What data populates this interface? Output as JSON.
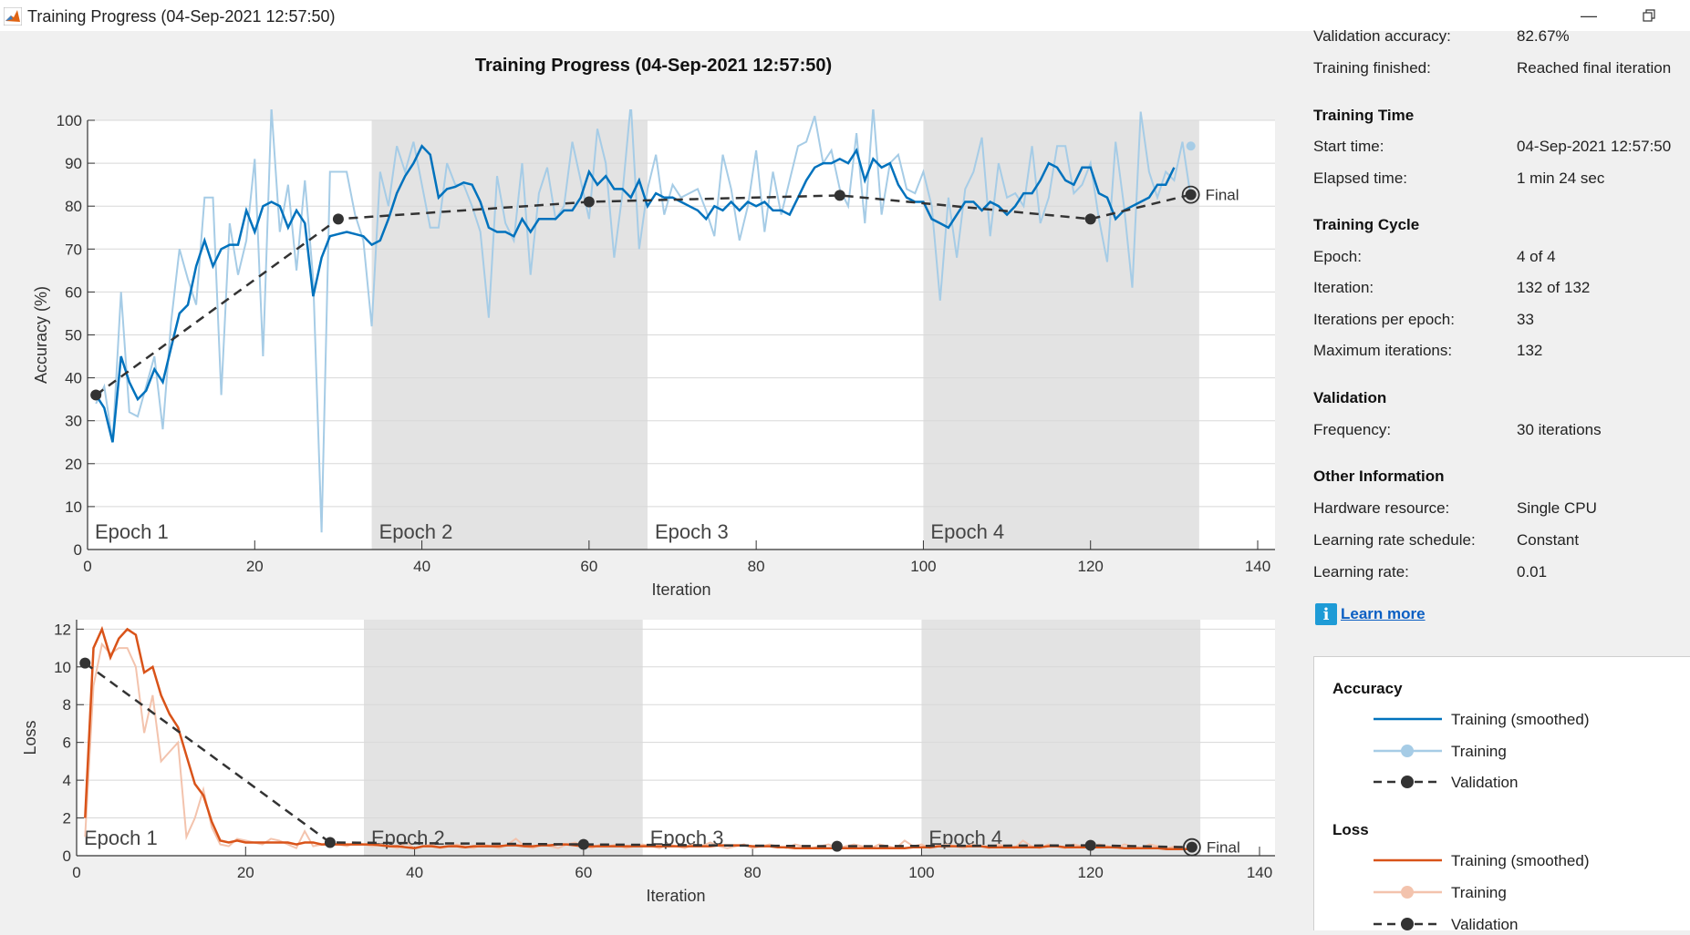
{
  "window": {
    "title": "Training Progress (04-Sep-2021 12:57:50)"
  },
  "figure": {
    "title": "Training Progress (04-Sep-2021 12:57:50)"
  },
  "colors": {
    "accuracy_smoothed": "#0072bd",
    "accuracy_raw": "#a6cce6",
    "loss_smoothed": "#d95319",
    "loss_raw": "#f3c3ad",
    "validation": "#333333",
    "epoch_shade": "#e3e3e3"
  },
  "summary": {
    "validation_accuracy": {
      "label": "Validation accuracy:",
      "value": "82.67%"
    },
    "training_finished": {
      "label": "Training finished:",
      "value": "Reached final iteration"
    }
  },
  "training_time": {
    "heading": "Training Time",
    "start_time": {
      "label": "Start time:",
      "value": "04-Sep-2021 12:57:50"
    },
    "elapsed_time": {
      "label": "Elapsed time:",
      "value": "1 min 24 sec"
    }
  },
  "training_cycle": {
    "heading": "Training Cycle",
    "epoch": {
      "label": "Epoch:",
      "value": "4 of 4"
    },
    "iteration": {
      "label": "Iteration:",
      "value": "132 of 132"
    },
    "iterations_per_epoch": {
      "label": "Iterations per epoch:",
      "value": "33"
    },
    "max_iterations": {
      "label": "Maximum iterations:",
      "value": "132"
    }
  },
  "validation": {
    "heading": "Validation",
    "frequency": {
      "label": "Frequency:",
      "value": "30 iterations"
    }
  },
  "other_info": {
    "heading": "Other Information",
    "hardware": {
      "label": "Hardware resource:",
      "value": "Single CPU"
    },
    "lr_schedule": {
      "label": "Learning rate schedule:",
      "value": "Constant"
    },
    "learning_rate": {
      "label": "Learning rate:",
      "value": "0.01"
    }
  },
  "learn_more": {
    "label": "Learn more",
    "icon": "info-icon"
  },
  "legend": {
    "accuracy_heading": "Accuracy",
    "loss_heading": "Loss",
    "items": {
      "smoothed": "Training (smoothed)",
      "training": "Training",
      "validation": "Validation"
    }
  },
  "chart_data": [
    {
      "type": "line",
      "xlabel": "Iteration",
      "ylabel": "Accuracy (%)",
      "xlim": [
        0,
        140
      ],
      "ylim": [
        0,
        100
      ],
      "xticks": [
        0,
        20,
        40,
        60,
        80,
        100,
        120,
        140
      ],
      "yticks": [
        0,
        10,
        20,
        30,
        40,
        50,
        60,
        70,
        80,
        90,
        100
      ],
      "grid": true,
      "epochs": [
        {
          "label": "Epoch 1",
          "start": 0,
          "end": 33,
          "shaded": false
        },
        {
          "label": "Epoch 2",
          "start": 34,
          "end": 67,
          "shaded": true
        },
        {
          "label": "Epoch 3",
          "start": 67,
          "end": 100,
          "shaded": false
        },
        {
          "label": "Epoch 4",
          "start": 100,
          "end": 133,
          "shaded": true
        }
      ],
      "final_label": "Final",
      "series": [
        {
          "name": "Training",
          "x_start": 1,
          "values": [
            34,
            38,
            25,
            60,
            32,
            31,
            38,
            45,
            28,
            53,
            70,
            63,
            57,
            82,
            82,
            36,
            76,
            64,
            72,
            91,
            45,
            103,
            74,
            85,
            65,
            86,
            63,
            4,
            88,
            88,
            88,
            78,
            72,
            52,
            88,
            80,
            94,
            88,
            95,
            85,
            75,
            75,
            90,
            85,
            85,
            80,
            74,
            54,
            87,
            76,
            72,
            90,
            64,
            83,
            89,
            77,
            80,
            95,
            86,
            77,
            98,
            90,
            68,
            83,
            104,
            70,
            84,
            92,
            78,
            85,
            82,
            83,
            84,
            79,
            73,
            92,
            84,
            72,
            80,
            93,
            74,
            88,
            78,
            86,
            94,
            95,
            101,
            90,
            93,
            84,
            80,
            97,
            76,
            103,
            78,
            90,
            92,
            84,
            83,
            88,
            80,
            58,
            82,
            68,
            84,
            88,
            96,
            73,
            90,
            82,
            83,
            80,
            94,
            76,
            82,
            94,
            94,
            83,
            85,
            90,
            77,
            67,
            95,
            80,
            61,
            102,
            88,
            82,
            88,
            86,
            95,
            82
          ],
          "extra_points": [
            {
              "x": 132,
              "y": 94
            }
          ]
        },
        {
          "name": "Training (smoothed)",
          "x_start": 1,
          "values": [
            36,
            33,
            25,
            45,
            39,
            35,
            37,
            42,
            39,
            47,
            55,
            57,
            66,
            72,
            66,
            70,
            71,
            71,
            79,
            74,
            80,
            81,
            80,
            75,
            79,
            76,
            59,
            68,
            73,
            73.5,
            74,
            73.5,
            73,
            71,
            72,
            77,
            83,
            87,
            90,
            94,
            92,
            82,
            84,
            84.5,
            85.5,
            85,
            81,
            75,
            74,
            74,
            73,
            77,
            74,
            77,
            77,
            77,
            79,
            79,
            82,
            88,
            85,
            87,
            84,
            84,
            82,
            86,
            80,
            83,
            82,
            82,
            81,
            80,
            79,
            77,
            80,
            79,
            81,
            79,
            81,
            80,
            81,
            79,
            79,
            78,
            82,
            86,
            89,
            90,
            90,
            91,
            90,
            93,
            86,
            91,
            89,
            90,
            85,
            82,
            81,
            81,
            77,
            76,
            75,
            78,
            81,
            81,
            79,
            81,
            80,
            78,
            80,
            83,
            83,
            86,
            90,
            89,
            86,
            85,
            89,
            89,
            83,
            82,
            77,
            79,
            80,
            81,
            82,
            85,
            85,
            89
          ]
        },
        {
          "name": "Validation",
          "x": [
            1,
            30,
            60,
            90,
            120,
            132
          ],
          "values": [
            36,
            77,
            81,
            82.5,
            77,
            82.67
          ]
        }
      ]
    },
    {
      "type": "line",
      "xlabel": "Iteration",
      "ylabel": "Loss",
      "xlim": [
        0,
        140
      ],
      "ylim": [
        0,
        12.5
      ],
      "xticks": [
        0,
        20,
        40,
        60,
        80,
        100,
        120,
        140
      ],
      "yticks": [
        0,
        2,
        4,
        6,
        8,
        10,
        12
      ],
      "grid": true,
      "epochs": [
        {
          "label": "Epoch 1",
          "start": 0,
          "end": 34,
          "shaded": false
        },
        {
          "label": "Epoch 2",
          "start": 34,
          "end": 67,
          "shaded": true
        },
        {
          "label": "Epoch 3",
          "start": 67,
          "end": 100,
          "shaded": false
        },
        {
          "label": "Epoch 4",
          "start": 100,
          "end": 133,
          "shaded": true
        }
      ],
      "final_label": "Final",
      "series": [
        {
          "name": "Training",
          "x_start": 1,
          "values": [
            1,
            9,
            11.2,
            10.7,
            11,
            11,
            10,
            6.5,
            8.5,
            5,
            5.5,
            6,
            1,
            2,
            3.5,
            1.5,
            0.6,
            0.5,
            0.9,
            0.8,
            0.7,
            0.6,
            0.9,
            0.8,
            0.6,
            0.4,
            1.3,
            0.5,
            0.6,
            0.7,
            0.6,
            0.5,
            0.7,
            0.6,
            0.5,
            0.6,
            0.5,
            0.4,
            0.7,
            0.4,
            0.5,
            0.6,
            0.4,
            0.5,
            0.6,
            0.5,
            0.4,
            0.6,
            0.5,
            0.4,
            0.6,
            0.9,
            0.5,
            0.4,
            0.6,
            0.5,
            0.4,
            0.6,
            0.7,
            0.5,
            0.4,
            0.6,
            0.5,
            0.6,
            0.4,
            0.5,
            0.6,
            0.5,
            0.4,
            0.6,
            0.5,
            0.4,
            0.6,
            0.5,
            0.7,
            0.5,
            0.4,
            0.5,
            0.6,
            0.4,
            0.5,
            0.6,
            0.5,
            0.4,
            0.6,
            0.5,
            0.4,
            0.5,
            0.6,
            0.4,
            0.5,
            0.6,
            0.5,
            0.4,
            0.6,
            0.5,
            0.4,
            0.8,
            0.5,
            0.6,
            0.4,
            0.5,
            0.6,
            0.5,
            0.4,
            0.6,
            0.5,
            0.4,
            0.6,
            0.5,
            0.4,
            0.8,
            0.5,
            0.4,
            0.6,
            0.5,
            0.4,
            0.6,
            0.5,
            0.4,
            0.6,
            0.5,
            0.4,
            0.6,
            0.5,
            0.4,
            0.6,
            0.5,
            0.4,
            0.5,
            0.4,
            0.3
          ]
        },
        {
          "name": "Training (smoothed)",
          "x_start": 1,
          "values": [
            2,
            11,
            12,
            10.5,
            11.5,
            12,
            11.7,
            9.7,
            10,
            8.5,
            7.5,
            6.8,
            5.3,
            3.8,
            3.2,
            1.8,
            0.8,
            0.7,
            0.8,
            0.7,
            0.7,
            0.7,
            0.7,
            0.7,
            0.7,
            0.6,
            0.7,
            0.7,
            0.6,
            0.6,
            0.6,
            0.6,
            0.6,
            0.6,
            0.6,
            0.55,
            0.5,
            0.5,
            0.45,
            0.4,
            0.5,
            0.5,
            0.45,
            0.5,
            0.5,
            0.45,
            0.5,
            0.5,
            0.5,
            0.5,
            0.55,
            0.55,
            0.5,
            0.5,
            0.55,
            0.55,
            0.6,
            0.6,
            0.55,
            0.5,
            0.5,
            0.5,
            0.5,
            0.5,
            0.5,
            0.5,
            0.5,
            0.5,
            0.5,
            0.5,
            0.5,
            0.5,
            0.5,
            0.5,
            0.5,
            0.55,
            0.55,
            0.55,
            0.55,
            0.5,
            0.5,
            0.5,
            0.45,
            0.45,
            0.4,
            0.4,
            0.4,
            0.4,
            0.4,
            0.4,
            0.4,
            0.4,
            0.4,
            0.4,
            0.4,
            0.4,
            0.4,
            0.4,
            0.45,
            0.45,
            0.45,
            0.5,
            0.5,
            0.5,
            0.5,
            0.5,
            0.5,
            0.45,
            0.45,
            0.45,
            0.45,
            0.45,
            0.45,
            0.45,
            0.5,
            0.5,
            0.45,
            0.45,
            0.45,
            0.45,
            0.45,
            0.45,
            0.45,
            0.4,
            0.4,
            0.4,
            0.4,
            0.4,
            0.35,
            0.35,
            0.35,
            0.35
          ]
        },
        {
          "name": "Validation",
          "x": [
            1,
            30,
            60,
            90,
            120,
            132
          ],
          "values": [
            10.2,
            0.7,
            0.6,
            0.5,
            0.55,
            0.45
          ]
        }
      ]
    }
  ]
}
